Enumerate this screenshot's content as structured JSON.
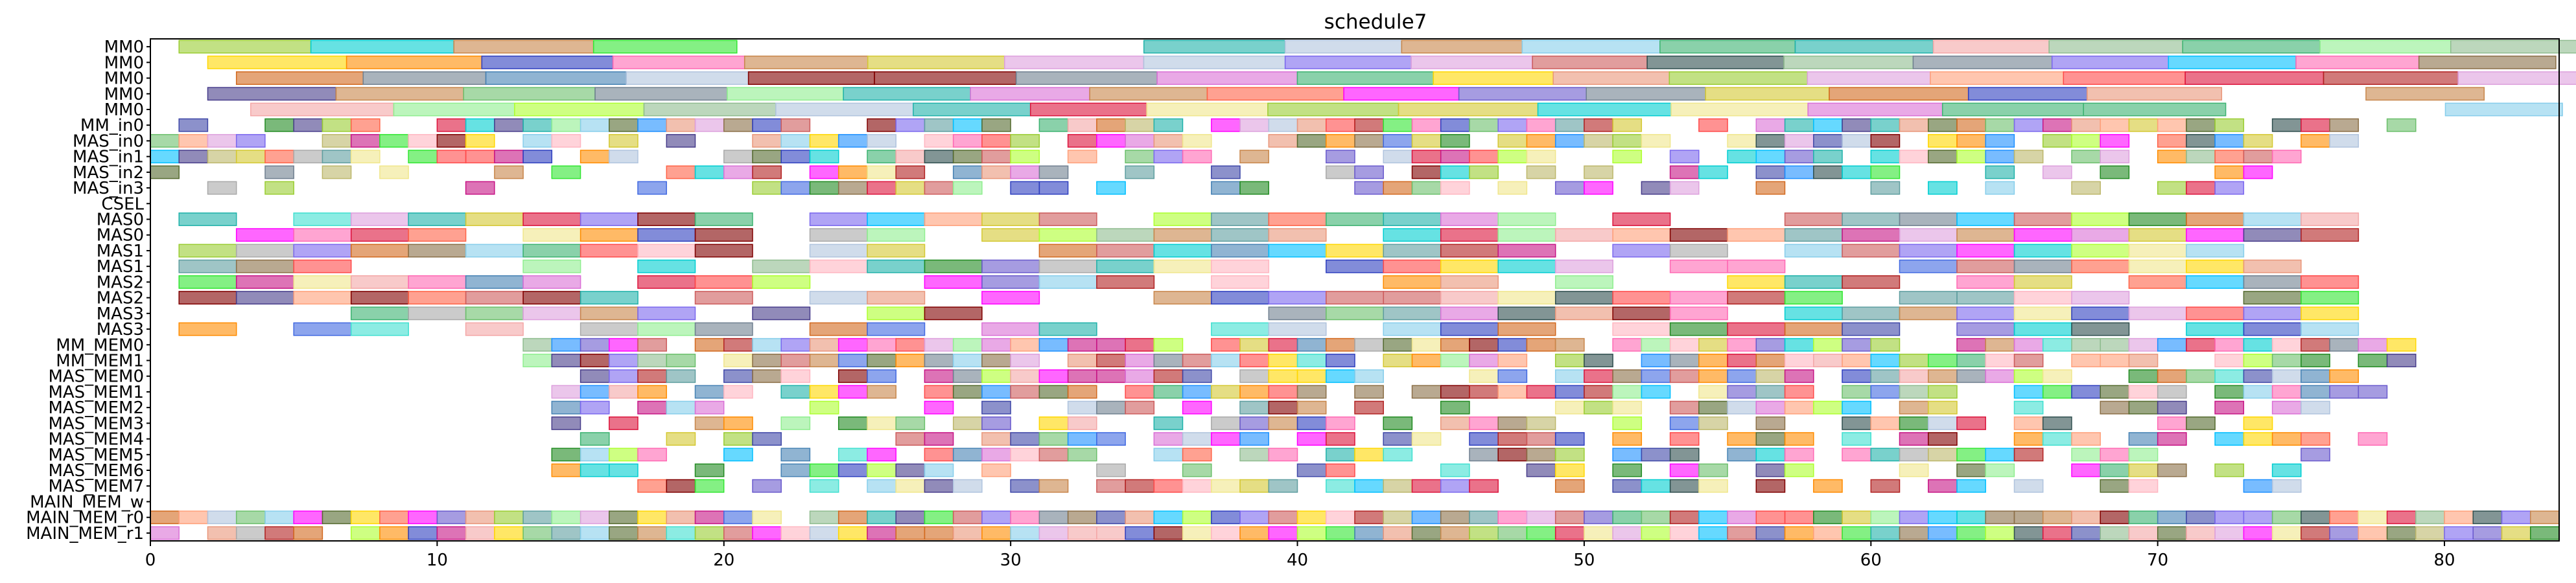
{
  "chart_data": {
    "type": "gantt",
    "title": "schedule7",
    "xlim": [
      0,
      84
    ],
    "x_ticks": [
      0,
      10,
      20,
      30,
      40,
      50,
      60,
      70,
      80
    ],
    "grid": false,
    "legend": "none",
    "rows": [
      "MM0",
      "MM0",
      "MM0",
      "MM0",
      "MM0",
      "MM_in0",
      "MAS_in0",
      "MAS_in1",
      "MAS_in2",
      "MAS_in3",
      "CSEL",
      "MAS0",
      "MAS0",
      "MAS1",
      "MAS1",
      "MAS2",
      "MAS2",
      "MAS3",
      "MAS3",
      "MM_MEM0",
      "MM_MEM1",
      "MAS_MEM0",
      "MAS_MEM1",
      "MAS_MEM2",
      "MAS_MEM3",
      "MAS_MEM4",
      "MAS_MEM5",
      "MAS_MEM6",
      "MAS_MEM7",
      "MAIN_MEM_w",
      "MAIN_MEM_r0",
      "MAIN_MEM_r1"
    ],
    "palette": [
      "#8b6f47",
      "#87ceeb",
      "#3f48a8",
      "#c8864a",
      "#2e3fbf",
      "#ff4a4a",
      "#d4c832",
      "#f4a7a7",
      "#6cbf6c",
      "#32e632",
      "#a9a9a9",
      "#6a5acd",
      "#40e0d0",
      "#4169e1",
      "#8fbc8f",
      "#dc143c",
      "#da70d6",
      "#ffd700",
      "#2f4f4f",
      "#ff8c00",
      "#1e90ff",
      "#228b22",
      "#ff69b4",
      "#90ee90",
      "#b0c4de",
      "#800000",
      "#00ced1",
      "#9acd32",
      "#ff6347",
      "#708090",
      "#dda0dd",
      "#f0e68c",
      "#5f9ea0",
      "#e9967a",
      "#7b68ee",
      "#adff2f",
      "#ffb6c1",
      "#20b2aa",
      "#cd5c5c",
      "#556b2f",
      "#ff00ff",
      "#00bfff",
      "#b22222",
      "#3cb371",
      "#c71585",
      "#ffa07a",
      "#483d8b",
      "#bdb76b",
      "#4682b4",
      "#d2691e"
    ],
    "bars_sample": [
      {
        "row": "MM0",
        "start": 1,
        "end": 6
      },
      {
        "row": "MM0",
        "start": 6,
        "end": 11
      },
      {
        "row": "MM0",
        "start": 11,
        "end": 16
      },
      {
        "row": "MM0",
        "start": 16,
        "end": 21
      },
      {
        "row": "MM0",
        "start": 21,
        "end": 26
      },
      {
        "row": "MM0",
        "start": 26,
        "end": 31
      },
      {
        "row": "MM0",
        "start": 31,
        "end": 36
      },
      {
        "row": "MM0",
        "start": 36,
        "end": 41
      },
      {
        "row": "MM0",
        "start": 41,
        "end": 46
      },
      {
        "row": "MM0",
        "start": 46,
        "end": 51
      },
      {
        "row": "MAIN_MEM_r0",
        "start": 0,
        "end": 1
      },
      {
        "row": "MAIN_MEM_r1",
        "start": 0,
        "end": 1
      }
    ]
  }
}
